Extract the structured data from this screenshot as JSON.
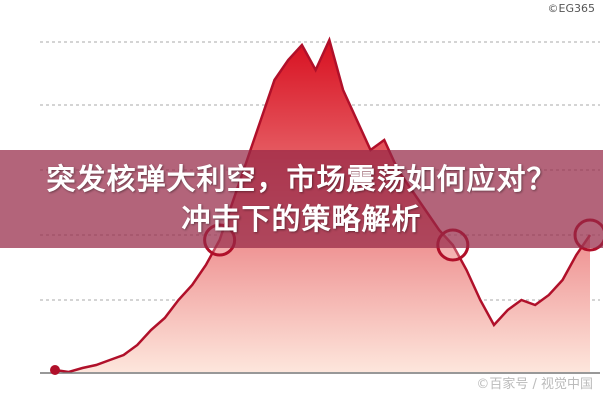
{
  "title": {
    "line1": "突发核弹大利空，市场震荡如何应对？",
    "line2": "冲击下的策略解析"
  },
  "watermark_top": "©EG365",
  "watermark_bottom": "©百家号 / 视觉中国",
  "colors": {
    "line": "#b0102a",
    "fill_top": "#d81020",
    "fill_bottom": "#fde6dc",
    "banner": "#962846"
  },
  "chart_data": {
    "type": "area",
    "title": "",
    "xlabel": "",
    "ylabel": "",
    "grid": true,
    "ylim": [
      0,
      340
    ],
    "values": [
      10,
      8,
      12,
      15,
      20,
      25,
      35,
      50,
      62,
      80,
      95,
      115,
      140,
      180,
      220,
      260,
      300,
      320,
      335,
      310,
      340,
      290,
      260,
      230,
      240,
      210,
      190,
      170,
      150,
      135,
      110,
      80,
      55,
      70,
      80,
      75,
      85,
      100,
      125,
      145
    ],
    "highlight_indices": [
      12,
      29,
      39
    ]
  }
}
